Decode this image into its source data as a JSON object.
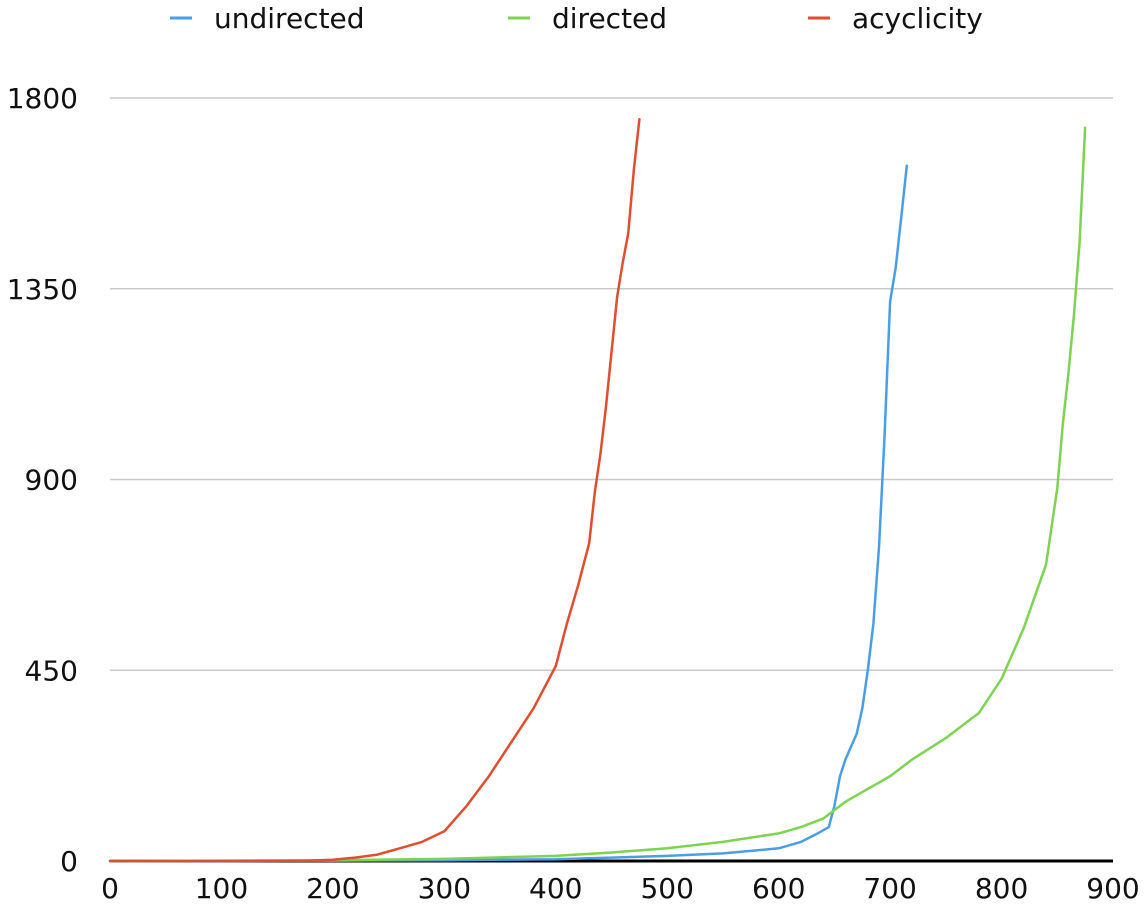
{
  "chart_data": {
    "type": "line",
    "title": "",
    "xlabel": "",
    "ylabel": "",
    "xlim": [
      0,
      900
    ],
    "ylim": [
      0,
      1800
    ],
    "x_ticks": [
      "0",
      "100",
      "200",
      "300",
      "400",
      "500",
      "600",
      "700",
      "800",
      "900"
    ],
    "y_ticks": [
      "0",
      "450",
      "900",
      "1350",
      "1800"
    ],
    "grid": "horizontal",
    "legend_position": "top",
    "series": [
      {
        "name": "undirected",
        "color": "#4a9ee8",
        "x": [
          0,
          100,
          200,
          300,
          400,
          500,
          550,
          580,
          600,
          620,
          635,
          645,
          650,
          655,
          660,
          665,
          670,
          675,
          680,
          685,
          690,
          695,
          700,
          705,
          710,
          715
        ],
        "y": [
          0,
          0,
          1,
          2,
          4,
          12,
          18,
          25,
          30,
          45,
          65,
          80,
          130,
          200,
          240,
          270,
          300,
          360,
          450,
          560,
          740,
          1000,
          1320,
          1400,
          1520,
          1640
        ]
      },
      {
        "name": "directed",
        "color": "#7cd452",
        "x": [
          0,
          100,
          200,
          300,
          400,
          450,
          500,
          550,
          600,
          620,
          640,
          660,
          680,
          700,
          720,
          750,
          780,
          800,
          820,
          840,
          850,
          855,
          860,
          865,
          870,
          875
        ],
        "y": [
          0,
          1,
          2,
          5,
          12,
          20,
          30,
          45,
          65,
          80,
          100,
          140,
          170,
          200,
          240,
          290,
          350,
          430,
          550,
          700,
          880,
          1030,
          1150,
          1290,
          1460,
          1730
        ]
      },
      {
        "name": "acyclicity",
        "color": "#e04e2e",
        "x": [
          0,
          100,
          180,
          200,
          220,
          240,
          260,
          280,
          300,
          320,
          340,
          360,
          380,
          400,
          410,
          420,
          430,
          435,
          440,
          445,
          450,
          455,
          460,
          465,
          470,
          475
        ],
        "y": [
          0,
          0,
          1,
          3,
          8,
          15,
          30,
          45,
          70,
          130,
          200,
          280,
          360,
          460,
          560,
          650,
          750,
          870,
          960,
          1070,
          1200,
          1330,
          1410,
          1480,
          1630,
          1750
        ]
      }
    ]
  }
}
